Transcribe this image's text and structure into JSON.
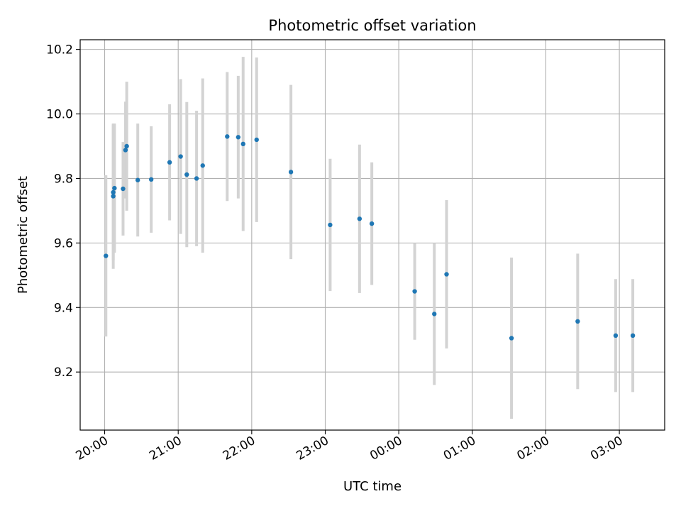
{
  "chart_data": {
    "type": "scatter",
    "title": "Photometric offset variation",
    "xlabel": "UTC time",
    "ylabel": "Photometric offset",
    "x_axis": "time",
    "x_range": [
      "19:40",
      "03:37"
    ],
    "x_ticks": [
      "20:00",
      "21:00",
      "22:00",
      "23:00",
      "00:00",
      "01:00",
      "02:00",
      "03:00"
    ],
    "ylim": [
      9.02,
      10.23
    ],
    "y_ticks": [
      "9.2",
      "9.4",
      "9.6",
      "9.8",
      "10.0",
      "10.2"
    ],
    "grid": true,
    "colors": {
      "point": "#1f77b4",
      "errorbar": "#d3d3d3",
      "grid": "#b0b0b0",
      "axes": "#000000"
    },
    "points": [
      {
        "x": "20:01",
        "y": 9.56,
        "yerr": 0.25
      },
      {
        "x": "20:07",
        "y": 9.745,
        "yerr": 0.225
      },
      {
        "x": "20:07",
        "y": 9.757,
        "yerr": 0.21
      },
      {
        "x": "20:08",
        "y": 9.77,
        "yerr": 0.2
      },
      {
        "x": "20:15",
        "y": 9.768,
        "yerr": 0.145
      },
      {
        "x": "20:17",
        "y": 9.888,
        "yerr": 0.15
      },
      {
        "x": "20:18",
        "y": 9.9,
        "yerr": 0.2
      },
      {
        "x": "20:27",
        "y": 9.795,
        "yerr": 0.175
      },
      {
        "x": "20:38",
        "y": 9.797,
        "yerr": 0.165
      },
      {
        "x": "20:53",
        "y": 9.85,
        "yerr": 0.18
      },
      {
        "x": "21:02",
        "y": 9.868,
        "yerr": 0.24
      },
      {
        "x": "21:07",
        "y": 9.812,
        "yerr": 0.225
      },
      {
        "x": "21:15",
        "y": 9.8,
        "yerr": 0.21
      },
      {
        "x": "21:20",
        "y": 9.84,
        "yerr": 0.27
      },
      {
        "x": "21:40",
        "y": 9.93,
        "yerr": 0.2
      },
      {
        "x": "21:49",
        "y": 9.928,
        "yerr": 0.19
      },
      {
        "x": "21:53",
        "y": 9.907,
        "yerr": 0.27
      },
      {
        "x": "22:04",
        "y": 9.92,
        "yerr": 0.255
      },
      {
        "x": "22:32",
        "y": 9.82,
        "yerr": 0.27
      },
      {
        "x": "23:04",
        "y": 9.656,
        "yerr": 0.205
      },
      {
        "x": "23:28",
        "y": 9.675,
        "yerr": 0.23
      },
      {
        "x": "23:38",
        "y": 9.66,
        "yerr": 0.19
      },
      {
        "x": "00:13",
        "y": 9.45,
        "yerr": 0.15
      },
      {
        "x": "00:29",
        "y": 9.38,
        "yerr": 0.22
      },
      {
        "x": "00:39",
        "y": 9.503,
        "yerr": 0.23
      },
      {
        "x": "01:32",
        "y": 9.305,
        "yerr": 0.25
      },
      {
        "x": "02:26",
        "y": 9.357,
        "yerr": 0.21
      },
      {
        "x": "02:57",
        "y": 9.313,
        "yerr": 0.175
      },
      {
        "x": "03:11",
        "y": 9.313,
        "yerr": 0.175
      }
    ]
  }
}
